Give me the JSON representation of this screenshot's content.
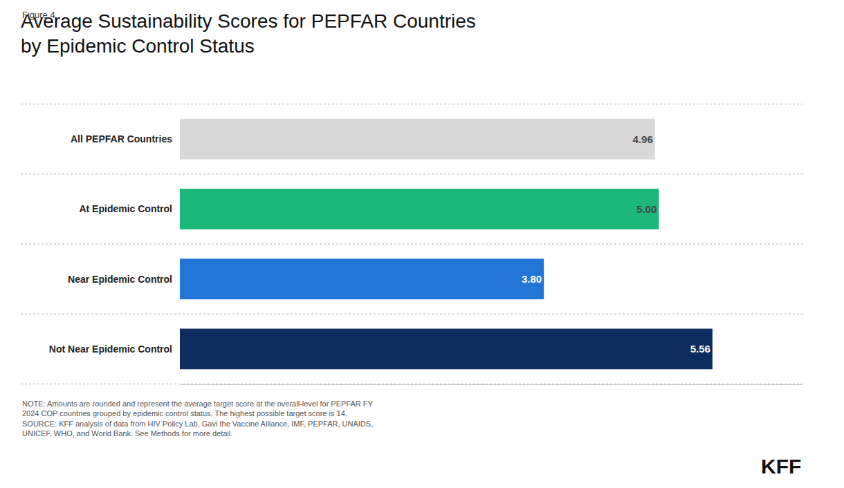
{
  "chart_data": {
    "type": "bar",
    "orientation": "horizontal",
    "title": "Average Sustainability Scores for PEPFAR Countries\nby Epidemic Control Status",
    "categories": [
      "All PEPFAR Countries",
      "At Epidemic Control",
      "Near Epidemic Control",
      "Not Near Epidemic Control"
    ],
    "values": [
      4.96,
      5.0,
      3.8,
      5.56
    ],
    "value_labels": [
      "4.96",
      "5.00",
      "3.80",
      "5.56"
    ],
    "data_labels": true,
    "colors": [
      "#d9d9d9",
      "#1cb87a",
      "#2176d8",
      "#0d2d5e"
    ],
    "xlim": [
      0,
      6.5
    ],
    "tick_labels": "y",
    "grid": false,
    "annotations": [
      "Figure 4",
      "NOTE: Amounts are rounded and represent the average target score at the overall-level for PEPFAR FY\n2024 COP countries grouped by epidemic control status. The highest possible target score is 14.\nSOURCE: KFF analysis of data from HIV Policy Lab, Gavi the Vaccine Alliance, IMF, PEPFAR, UNAIDS,\nUNICEF, WHO, and World Bank. See Methods for more detail.",
      "KFF"
    ]
  }
}
